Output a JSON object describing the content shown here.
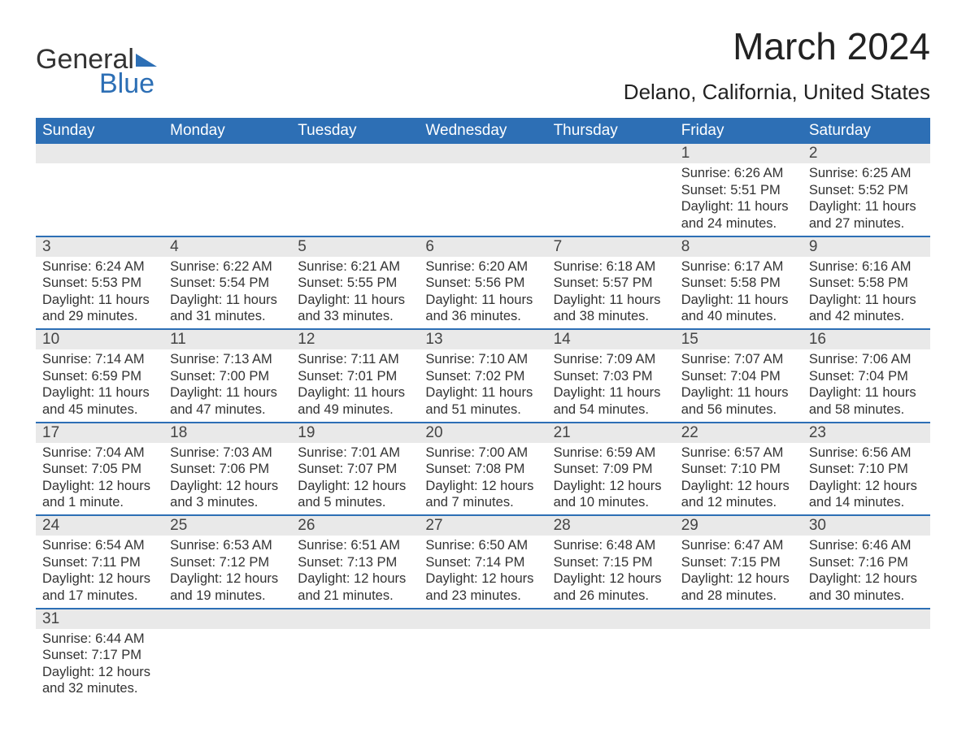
{
  "brand": {
    "line1": "General",
    "line2": "Blue"
  },
  "title": "March 2024",
  "location": "Delano, California, United States",
  "colors": {
    "header_bg": "#2d6fb5",
    "header_fg": "#ffffff",
    "daynum_bg": "#e9e9e9",
    "row_border": "#2d6fb5",
    "text": "#333333",
    "bg": "#ffffff"
  },
  "fonts": {
    "title_size_pt": 34,
    "location_size_pt": 20,
    "header_size_pt": 14,
    "body_size_pt": 12
  },
  "day_headers": [
    "Sunday",
    "Monday",
    "Tuesday",
    "Wednesday",
    "Thursday",
    "Friday",
    "Saturday"
  ],
  "weeks": [
    [
      null,
      null,
      null,
      null,
      null,
      {
        "n": "1",
        "sunrise": "Sunrise: 6:26 AM",
        "sunset": "Sunset: 5:51 PM",
        "dl1": "Daylight: 11 hours",
        "dl2": "and 24 minutes."
      },
      {
        "n": "2",
        "sunrise": "Sunrise: 6:25 AM",
        "sunset": "Sunset: 5:52 PM",
        "dl1": "Daylight: 11 hours",
        "dl2": "and 27 minutes."
      }
    ],
    [
      {
        "n": "3",
        "sunrise": "Sunrise: 6:24 AM",
        "sunset": "Sunset: 5:53 PM",
        "dl1": "Daylight: 11 hours",
        "dl2": "and 29 minutes."
      },
      {
        "n": "4",
        "sunrise": "Sunrise: 6:22 AM",
        "sunset": "Sunset: 5:54 PM",
        "dl1": "Daylight: 11 hours",
        "dl2": "and 31 minutes."
      },
      {
        "n": "5",
        "sunrise": "Sunrise: 6:21 AM",
        "sunset": "Sunset: 5:55 PM",
        "dl1": "Daylight: 11 hours",
        "dl2": "and 33 minutes."
      },
      {
        "n": "6",
        "sunrise": "Sunrise: 6:20 AM",
        "sunset": "Sunset: 5:56 PM",
        "dl1": "Daylight: 11 hours",
        "dl2": "and 36 minutes."
      },
      {
        "n": "7",
        "sunrise": "Sunrise: 6:18 AM",
        "sunset": "Sunset: 5:57 PM",
        "dl1": "Daylight: 11 hours",
        "dl2": "and 38 minutes."
      },
      {
        "n": "8",
        "sunrise": "Sunrise: 6:17 AM",
        "sunset": "Sunset: 5:58 PM",
        "dl1": "Daylight: 11 hours",
        "dl2": "and 40 minutes."
      },
      {
        "n": "9",
        "sunrise": "Sunrise: 6:16 AM",
        "sunset": "Sunset: 5:58 PM",
        "dl1": "Daylight: 11 hours",
        "dl2": "and 42 minutes."
      }
    ],
    [
      {
        "n": "10",
        "sunrise": "Sunrise: 7:14 AM",
        "sunset": "Sunset: 6:59 PM",
        "dl1": "Daylight: 11 hours",
        "dl2": "and 45 minutes."
      },
      {
        "n": "11",
        "sunrise": "Sunrise: 7:13 AM",
        "sunset": "Sunset: 7:00 PM",
        "dl1": "Daylight: 11 hours",
        "dl2": "and 47 minutes."
      },
      {
        "n": "12",
        "sunrise": "Sunrise: 7:11 AM",
        "sunset": "Sunset: 7:01 PM",
        "dl1": "Daylight: 11 hours",
        "dl2": "and 49 minutes."
      },
      {
        "n": "13",
        "sunrise": "Sunrise: 7:10 AM",
        "sunset": "Sunset: 7:02 PM",
        "dl1": "Daylight: 11 hours",
        "dl2": "and 51 minutes."
      },
      {
        "n": "14",
        "sunrise": "Sunrise: 7:09 AM",
        "sunset": "Sunset: 7:03 PM",
        "dl1": "Daylight: 11 hours",
        "dl2": "and 54 minutes."
      },
      {
        "n": "15",
        "sunrise": "Sunrise: 7:07 AM",
        "sunset": "Sunset: 7:04 PM",
        "dl1": "Daylight: 11 hours",
        "dl2": "and 56 minutes."
      },
      {
        "n": "16",
        "sunrise": "Sunrise: 7:06 AM",
        "sunset": "Sunset: 7:04 PM",
        "dl1": "Daylight: 11 hours",
        "dl2": "and 58 minutes."
      }
    ],
    [
      {
        "n": "17",
        "sunrise": "Sunrise: 7:04 AM",
        "sunset": "Sunset: 7:05 PM",
        "dl1": "Daylight: 12 hours",
        "dl2": "and 1 minute."
      },
      {
        "n": "18",
        "sunrise": "Sunrise: 7:03 AM",
        "sunset": "Sunset: 7:06 PM",
        "dl1": "Daylight: 12 hours",
        "dl2": "and 3 minutes."
      },
      {
        "n": "19",
        "sunrise": "Sunrise: 7:01 AM",
        "sunset": "Sunset: 7:07 PM",
        "dl1": "Daylight: 12 hours",
        "dl2": "and 5 minutes."
      },
      {
        "n": "20",
        "sunrise": "Sunrise: 7:00 AM",
        "sunset": "Sunset: 7:08 PM",
        "dl1": "Daylight: 12 hours",
        "dl2": "and 7 minutes."
      },
      {
        "n": "21",
        "sunrise": "Sunrise: 6:59 AM",
        "sunset": "Sunset: 7:09 PM",
        "dl1": "Daylight: 12 hours",
        "dl2": "and 10 minutes."
      },
      {
        "n": "22",
        "sunrise": "Sunrise: 6:57 AM",
        "sunset": "Sunset: 7:10 PM",
        "dl1": "Daylight: 12 hours",
        "dl2": "and 12 minutes."
      },
      {
        "n": "23",
        "sunrise": "Sunrise: 6:56 AM",
        "sunset": "Sunset: 7:10 PM",
        "dl1": "Daylight: 12 hours",
        "dl2": "and 14 minutes."
      }
    ],
    [
      {
        "n": "24",
        "sunrise": "Sunrise: 6:54 AM",
        "sunset": "Sunset: 7:11 PM",
        "dl1": "Daylight: 12 hours",
        "dl2": "and 17 minutes."
      },
      {
        "n": "25",
        "sunrise": "Sunrise: 6:53 AM",
        "sunset": "Sunset: 7:12 PM",
        "dl1": "Daylight: 12 hours",
        "dl2": "and 19 minutes."
      },
      {
        "n": "26",
        "sunrise": "Sunrise: 6:51 AM",
        "sunset": "Sunset: 7:13 PM",
        "dl1": "Daylight: 12 hours",
        "dl2": "and 21 minutes."
      },
      {
        "n": "27",
        "sunrise": "Sunrise: 6:50 AM",
        "sunset": "Sunset: 7:14 PM",
        "dl1": "Daylight: 12 hours",
        "dl2": "and 23 minutes."
      },
      {
        "n": "28",
        "sunrise": "Sunrise: 6:48 AM",
        "sunset": "Sunset: 7:15 PM",
        "dl1": "Daylight: 12 hours",
        "dl2": "and 26 minutes."
      },
      {
        "n": "29",
        "sunrise": "Sunrise: 6:47 AM",
        "sunset": "Sunset: 7:15 PM",
        "dl1": "Daylight: 12 hours",
        "dl2": "and 28 minutes."
      },
      {
        "n": "30",
        "sunrise": "Sunrise: 6:46 AM",
        "sunset": "Sunset: 7:16 PM",
        "dl1": "Daylight: 12 hours",
        "dl2": "and 30 minutes."
      }
    ],
    [
      {
        "n": "31",
        "sunrise": "Sunrise: 6:44 AM",
        "sunset": "Sunset: 7:17 PM",
        "dl1": "Daylight: 12 hours",
        "dl2": "and 32 minutes."
      },
      null,
      null,
      null,
      null,
      null,
      null
    ]
  ]
}
